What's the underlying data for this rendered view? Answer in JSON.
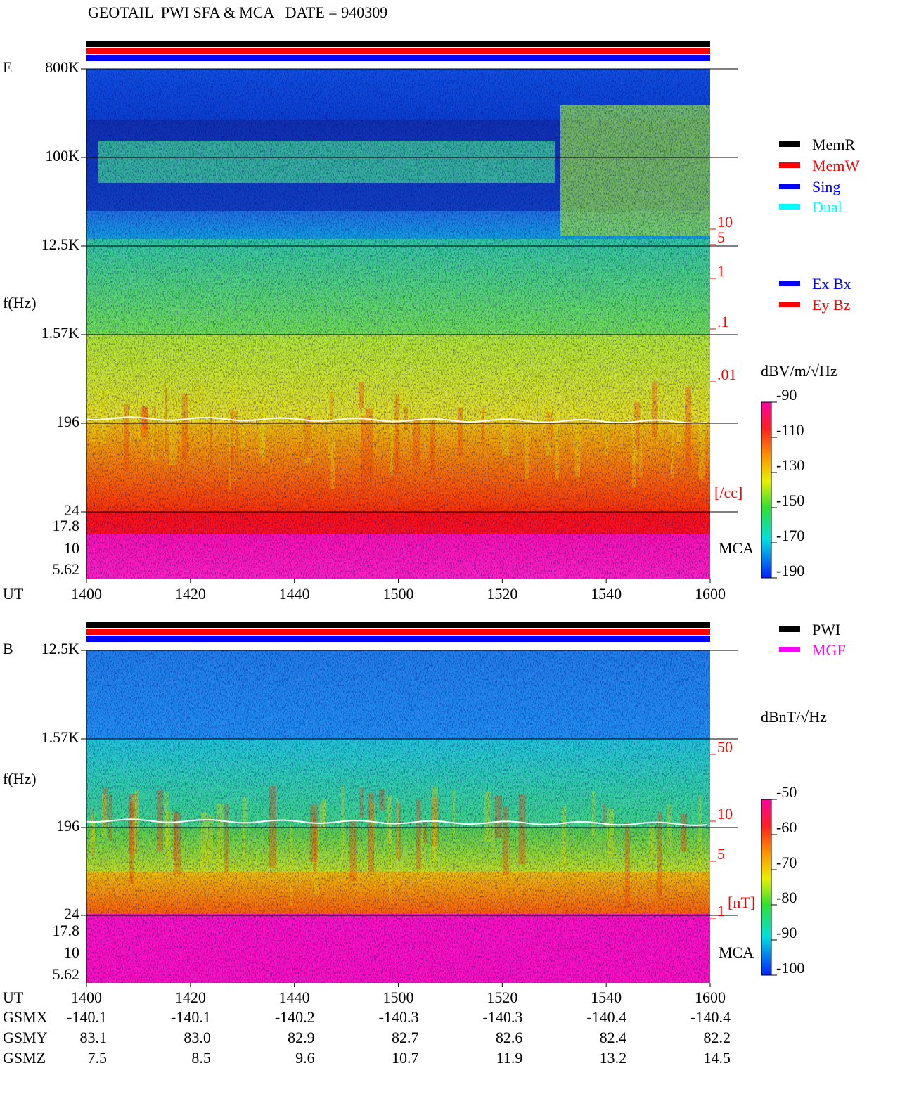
{
  "title": "GEOTAIL  PWI SFA & MCA   DATE = 940309",
  "panels": [
    {
      "label": "E",
      "freq_ticks": [
        "800K",
        "100K",
        "12.5K",
        "1.57K",
        "196",
        "24",
        "17.8",
        "10",
        "5.62"
      ],
      "freq_axis_label": "f(Hz)",
      "time_axis_label": "UT",
      "time_ticks": [
        1400,
        1420,
        1440,
        1500,
        1520,
        1540,
        1600
      ],
      "right_scale": [
        "10",
        "5",
        "1",
        ".1",
        ".01"
      ],
      "right_unit": "[/cc]",
      "mca_label": "MCA",
      "colorbar": {
        "unit": "dBV/m/√Hz",
        "ticks": [
          -90,
          -110,
          -130,
          -150,
          -170,
          -190
        ]
      },
      "legend": [
        {
          "name": "MemR",
          "color": "#000000"
        },
        {
          "name": "MemW",
          "color": "#ff0000"
        },
        {
          "name": "Sing",
          "color": "#0000ff"
        },
        {
          "name": "Dual",
          "color": "#00ffff"
        }
      ],
      "legend2": [
        {
          "name": "Ex Bx",
          "color": "#0000ff"
        },
        {
          "name": "Ey Bz",
          "color": "#ff0000"
        }
      ]
    },
    {
      "label": "B",
      "freq_ticks": [
        "12.5K",
        "1.57K",
        "196",
        "24",
        "17.8",
        "10",
        "5.62"
      ],
      "freq_axis_label": "f(Hz)",
      "time_axis_label": "UT",
      "time_ticks": [
        1400,
        1420,
        1440,
        1500,
        1520,
        1540,
        1600
      ],
      "right_scale": [
        "50",
        "10",
        "5",
        "1"
      ],
      "right_unit": "[nT]",
      "mca_label": "MCA",
      "colorbar": {
        "unit": "dBnT/√Hz",
        "ticks": [
          -50,
          -60,
          -70,
          -80,
          -90,
          -100
        ]
      },
      "legend": [
        {
          "name": "PWI",
          "color": "#000000"
        },
        {
          "name": "MGF",
          "color": "#ff00ff"
        }
      ]
    }
  ],
  "orbit": {
    "rows": [
      {
        "name": "GSMX",
        "values": [
          "-140.1",
          "-140.1",
          "-140.2",
          "-140.3",
          "-140.3",
          "-140.4",
          "-140.4"
        ]
      },
      {
        "name": "GSMY",
        "values": [
          "83.1",
          "83.0",
          "82.9",
          "82.7",
          "82.6",
          "82.4",
          "82.2"
        ]
      },
      {
        "name": "GSMZ",
        "values": [
          "7.5",
          "8.5",
          "9.6",
          "10.7",
          "11.9",
          "13.2",
          "14.5"
        ]
      }
    ]
  }
}
